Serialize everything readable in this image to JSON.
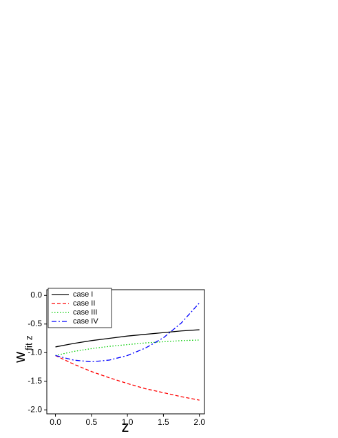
{
  "chart_data": {
    "type": "line",
    "xlabel": "z",
    "ylabel": "w",
    "ylabel_subscript": "fit z",
    "x": [
      0,
      0.25,
      0.5,
      0.75,
      1.0,
      1.25,
      1.5,
      1.75,
      2.0
    ],
    "series": [
      {
        "name": "case I",
        "color": "#000000",
        "dash": "solid",
        "values": [
          -0.9,
          -0.84,
          -0.79,
          -0.75,
          -0.71,
          -0.68,
          -0.65,
          -0.62,
          -0.6
        ]
      },
      {
        "name": "case II",
        "color": "#ff0000",
        "dash": "dashed",
        "values": [
          -1.05,
          -1.2,
          -1.33,
          -1.44,
          -1.54,
          -1.63,
          -1.7,
          -1.77,
          -1.83
        ]
      },
      {
        "name": "case III",
        "color": "#00cc00",
        "dash": "dotted",
        "values": [
          -1.05,
          -0.98,
          -0.93,
          -0.89,
          -0.86,
          -0.83,
          -0.81,
          -0.79,
          -0.78
        ]
      },
      {
        "name": "case IV",
        "color": "#0000ff",
        "dash": "dashdot",
        "values": [
          -1.05,
          -1.13,
          -1.16,
          -1.13,
          -1.05,
          -0.92,
          -0.74,
          -0.48,
          -0.13
        ]
      }
    ],
    "xlim": [
      -0.12,
      2.07
    ],
    "ylim": [
      -2.07,
      0.1
    ],
    "xticks": [
      {
        "value": 0,
        "label": "0.0"
      },
      0.5,
      {
        "value": 1,
        "label": "1.0"
      },
      1.5,
      {
        "value": 2,
        "label": "2.0"
      }
    ],
    "yticks": [
      {
        "value": 0,
        "label": "0.0"
      },
      -0.5,
      {
        "value": -1,
        "label": "-1.0"
      },
      -1.5,
      {
        "value": -2,
        "label": "-2.0"
      }
    ],
    "legend": "upper left",
    "grid": false
  }
}
